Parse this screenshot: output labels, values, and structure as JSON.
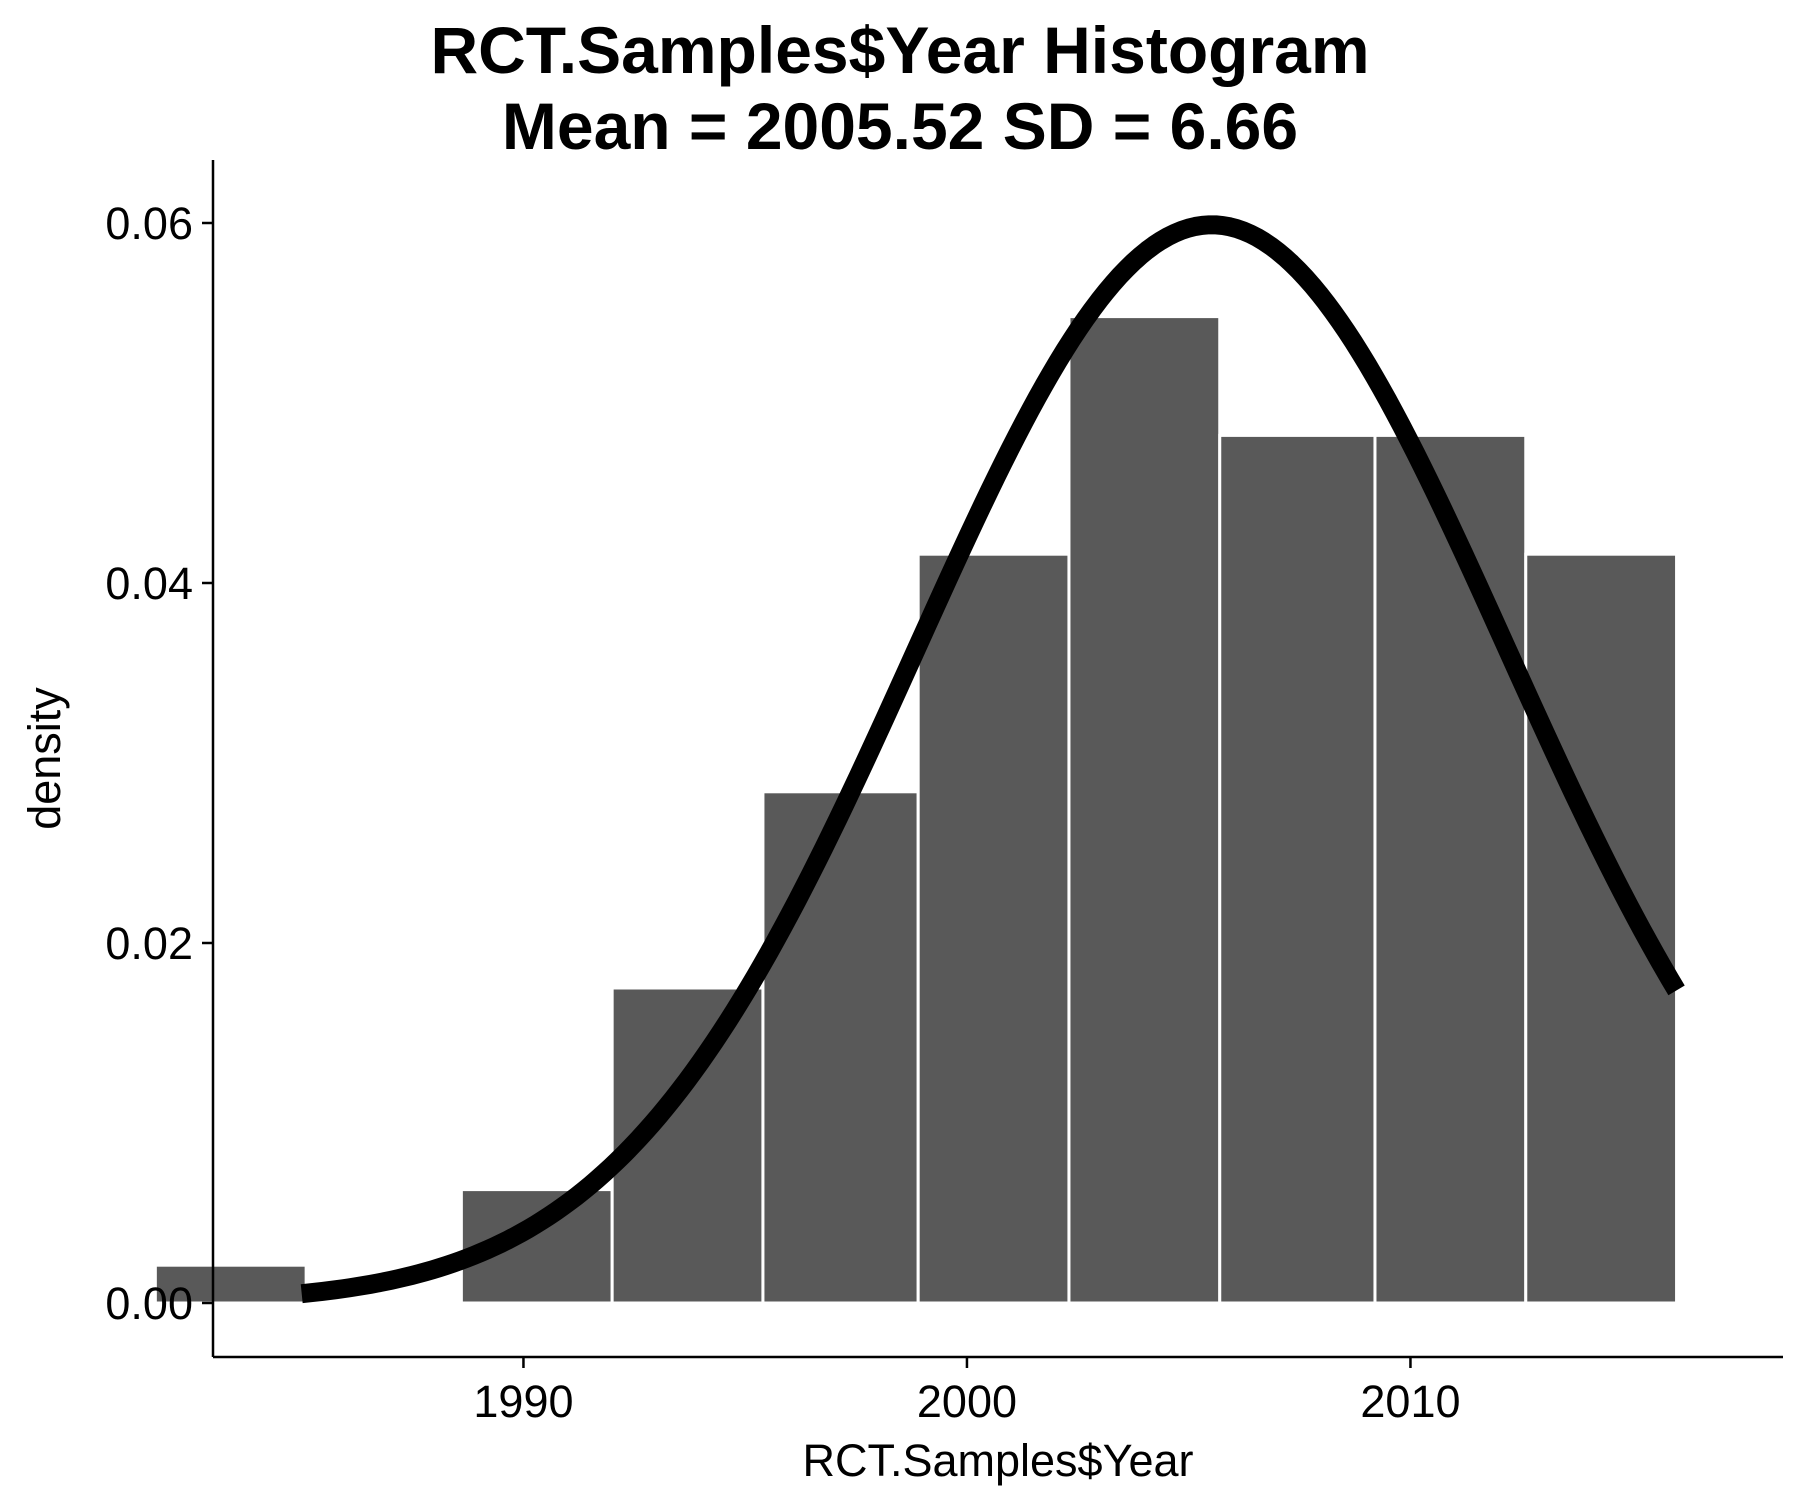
{
  "chart_data": {
    "type": "bar",
    "title": "RCT.Samples$Year Histogram",
    "subtitle": "Mean = 2005.52 SD = 6.66",
    "xlabel": "RCT.Samples$Year",
    "ylabel": "density",
    "xlim": [
      1983.0,
      2018.4
    ],
    "ylim": [
      -0.003,
      0.0635
    ],
    "x_ticks": [
      1990,
      2000,
      2010
    ],
    "y_ticks": [
      0.0,
      0.02,
      0.04,
      0.06
    ],
    "x_tick_labels": [
      "1990",
      "2000",
      "2010"
    ],
    "y_tick_labels": [
      "0.00",
      "0.02",
      "0.04",
      "0.06"
    ],
    "bar_color": "#595959",
    "bar_edge_color": "#ffffff",
    "curve_color": "#000000",
    "grid": false,
    "bins": [
      {
        "x0": 1981.7,
        "x1": 1985.1,
        "density": 0.0021
      },
      {
        "x0": 1985.1,
        "x1": 1988.6,
        "density": 0.0
      },
      {
        "x0": 1988.6,
        "x1": 1992.0,
        "density": 0.0063
      },
      {
        "x0": 1992.0,
        "x1": 1995.4,
        "density": 0.0175
      },
      {
        "x0": 1995.4,
        "x1": 1998.9,
        "density": 0.0284
      },
      {
        "x0": 1998.9,
        "x1": 2002.3,
        "density": 0.0416
      },
      {
        "x0": 2002.3,
        "x1": 2005.7,
        "density": 0.0548
      },
      {
        "x0": 2005.7,
        "x1": 2009.2,
        "density": 0.0482
      },
      {
        "x0": 2009.2,
        "x1": 2012.6,
        "density": 0.0482
      },
      {
        "x0": 2012.6,
        "x1": 2016.0,
        "density": 0.0416
      }
    ],
    "normal_curve": {
      "mean": 2005.52,
      "sd": 6.66,
      "x_range": [
        1985,
        2016
      ]
    }
  }
}
